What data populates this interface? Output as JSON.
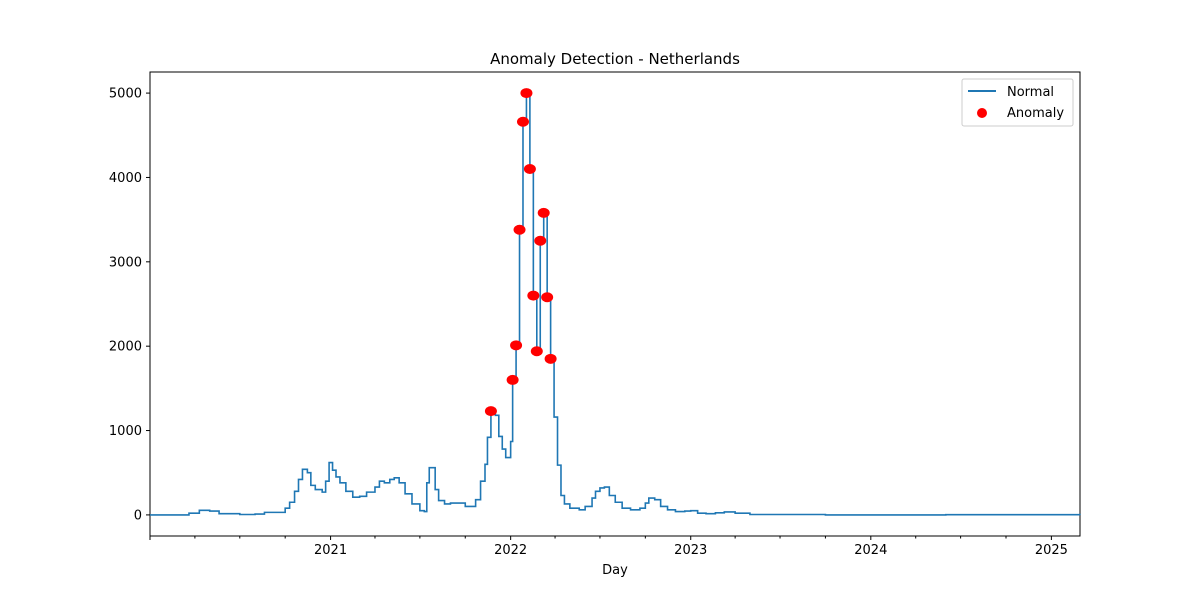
{
  "chart_data": {
    "type": "line",
    "title": "Anomaly Detection - Netherlands",
    "xlabel": "Day",
    "ylabel": "",
    "xlim": [
      "2020-01-01",
      "2025-02-28"
    ],
    "ylim": [
      -250,
      5250
    ],
    "x_ticks": [
      {
        "date": "2021-01-01",
        "label": "2021"
      },
      {
        "date": "2022-01-01",
        "label": "2022"
      },
      {
        "date": "2023-01-01",
        "label": "2023"
      },
      {
        "date": "2024-01-01",
        "label": "2024"
      },
      {
        "date": "2025-01-01",
        "label": "2025"
      }
    ],
    "y_ticks": [
      0,
      1000,
      2000,
      3000,
      4000,
      5000
    ],
    "y_tick_labels": [
      "0",
      "1000",
      "2000",
      "3000",
      "4000",
      "5000"
    ],
    "legend": {
      "position": "top-right",
      "entries": [
        "Normal",
        "Anomaly"
      ]
    },
    "colors": {
      "normal": "#1f77b4",
      "anomaly": "#ff0000"
    },
    "series": [
      {
        "name": "Normal",
        "kind": "line",
        "points": [
          [
            "2020-01-01",
            0
          ],
          [
            "2020-03-01",
            0
          ],
          [
            "2020-03-20",
            20
          ],
          [
            "2020-04-10",
            55
          ],
          [
            "2020-05-01",
            45
          ],
          [
            "2020-05-20",
            15
          ],
          [
            "2020-07-01",
            5
          ],
          [
            "2020-08-01",
            10
          ],
          [
            "2020-08-20",
            30
          ],
          [
            "2020-09-15",
            30
          ],
          [
            "2020-10-01",
            80
          ],
          [
            "2020-10-10",
            150
          ],
          [
            "2020-10-20",
            280
          ],
          [
            "2020-10-28",
            420
          ],
          [
            "2020-11-05",
            540
          ],
          [
            "2020-11-15",
            500
          ],
          [
            "2020-11-22",
            350
          ],
          [
            "2020-12-01",
            300
          ],
          [
            "2020-12-15",
            270
          ],
          [
            "2020-12-22",
            400
          ],
          [
            "2020-12-29",
            620
          ],
          [
            "2021-01-05",
            530
          ],
          [
            "2021-01-12",
            450
          ],
          [
            "2021-01-20",
            380
          ],
          [
            "2021-02-01",
            280
          ],
          [
            "2021-02-15",
            210
          ],
          [
            "2021-03-01",
            220
          ],
          [
            "2021-03-15",
            270
          ],
          [
            "2021-04-01",
            330
          ],
          [
            "2021-04-10",
            400
          ],
          [
            "2021-04-20",
            380
          ],
          [
            "2021-05-01",
            420
          ],
          [
            "2021-05-10",
            440
          ],
          [
            "2021-05-20",
            380
          ],
          [
            "2021-06-01",
            250
          ],
          [
            "2021-06-15",
            130
          ],
          [
            "2021-07-01",
            50
          ],
          [
            "2021-07-10",
            40
          ],
          [
            "2021-07-15",
            380
          ],
          [
            "2021-07-20",
            560
          ],
          [
            "2021-07-25",
            560
          ],
          [
            "2021-08-01",
            300
          ],
          [
            "2021-08-08",
            170
          ],
          [
            "2021-08-20",
            130
          ],
          [
            "2021-09-01",
            140
          ],
          [
            "2021-09-20",
            140
          ],
          [
            "2021-10-01",
            100
          ],
          [
            "2021-10-15",
            100
          ],
          [
            "2021-10-22",
            180
          ],
          [
            "2021-11-01",
            400
          ],
          [
            "2021-11-10",
            600
          ],
          [
            "2021-11-15",
            920
          ],
          [
            "2021-11-22",
            1230
          ],
          [
            "2021-12-01",
            1180
          ],
          [
            "2021-12-08",
            930
          ],
          [
            "2021-12-15",
            780
          ],
          [
            "2021-12-22",
            680
          ],
          [
            "2021-12-29",
            680
          ],
          [
            "2022-01-01",
            870
          ],
          [
            "2022-01-05",
            1600
          ],
          [
            "2022-01-12",
            2010
          ],
          [
            "2022-01-19",
            3380
          ],
          [
            "2022-01-26",
            4660
          ],
          [
            "2022-02-02",
            5000
          ],
          [
            "2022-02-09",
            4100
          ],
          [
            "2022-02-16",
            2600
          ],
          [
            "2022-02-23",
            1940
          ],
          [
            "2022-03-02",
            3250
          ],
          [
            "2022-03-09",
            3580
          ],
          [
            "2022-03-16",
            2580
          ],
          [
            "2022-03-23",
            1850
          ],
          [
            "2022-03-30",
            1160
          ],
          [
            "2022-04-06",
            590
          ],
          [
            "2022-04-13",
            230
          ],
          [
            "2022-04-20",
            130
          ],
          [
            "2022-05-01",
            80
          ],
          [
            "2022-05-20",
            60
          ],
          [
            "2022-06-01",
            100
          ],
          [
            "2022-06-15",
            200
          ],
          [
            "2022-06-22",
            280
          ],
          [
            "2022-07-01",
            320
          ],
          [
            "2022-07-10",
            330
          ],
          [
            "2022-07-20",
            230
          ],
          [
            "2022-08-01",
            150
          ],
          [
            "2022-08-15",
            80
          ],
          [
            "2022-09-01",
            60
          ],
          [
            "2022-09-20",
            80
          ],
          [
            "2022-10-01",
            140
          ],
          [
            "2022-10-08",
            200
          ],
          [
            "2022-10-20",
            180
          ],
          [
            "2022-11-01",
            100
          ],
          [
            "2022-11-15",
            60
          ],
          [
            "2022-12-01",
            40
          ],
          [
            "2022-12-20",
            45
          ],
          [
            "2023-01-01",
            50
          ],
          [
            "2023-01-15",
            20
          ],
          [
            "2023-02-01",
            15
          ],
          [
            "2023-02-20",
            25
          ],
          [
            "2023-03-10",
            35
          ],
          [
            "2023-04-01",
            20
          ],
          [
            "2023-05-01",
            5
          ],
          [
            "2023-10-01",
            0
          ],
          [
            "2024-06-01",
            3
          ],
          [
            "2024-10-01",
            3
          ],
          [
            "2025-02-28",
            0
          ]
        ]
      },
      {
        "name": "Anomaly",
        "kind": "scatter",
        "points": [
          [
            "2021-11-22",
            1230
          ],
          [
            "2022-01-05",
            1600
          ],
          [
            "2022-01-12",
            2010
          ],
          [
            "2022-01-19",
            3380
          ],
          [
            "2022-01-26",
            4660
          ],
          [
            "2022-02-02",
            5000
          ],
          [
            "2022-02-09",
            4100
          ],
          [
            "2022-02-16",
            2600
          ],
          [
            "2022-02-23",
            1940
          ],
          [
            "2022-03-02",
            3250
          ],
          [
            "2022-03-09",
            3580
          ],
          [
            "2022-03-16",
            2580
          ],
          [
            "2022-03-23",
            1850
          ]
        ]
      }
    ]
  }
}
